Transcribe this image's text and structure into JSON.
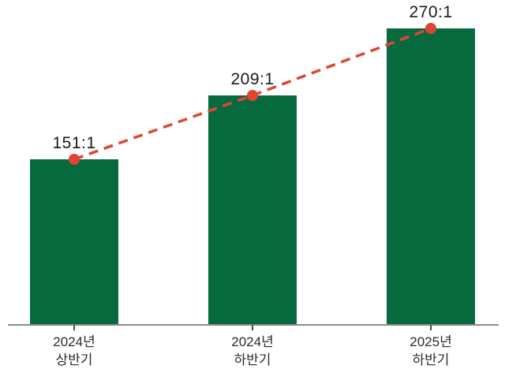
{
  "chart_data": {
    "type": "bar",
    "title": "",
    "xlabel": "",
    "ylabel": "",
    "categories": [
      {
        "line1": "2024년",
        "line2": "상반기"
      },
      {
        "line1": "2024년",
        "line2": "하반기"
      },
      {
        "line1": "2025년",
        "line2": "하반기"
      }
    ],
    "values": [
      151,
      209,
      270
    ],
    "value_labels": [
      "151:1",
      "209:1",
      "270:1"
    ],
    "series": [
      {
        "name": "competition-ratio-bars",
        "type": "bar",
        "values": [
          151,
          209,
          270
        ]
      },
      {
        "name": "competition-ratio-trend",
        "type": "line",
        "style": "dashed",
        "values": [
          151,
          209,
          270
        ]
      }
    ],
    "ylim": [
      0,
      296
    ],
    "grid": false,
    "legend_position": "none",
    "colors": {
      "bar": "#076a3e",
      "line": "#e04533",
      "marker": "#e04533",
      "axis": "#8c8c8c",
      "tick": "#4a4a4a",
      "value_label": "#1a1a1a",
      "category_label": "#2b2b2b",
      "background": "#ffffff"
    }
  }
}
